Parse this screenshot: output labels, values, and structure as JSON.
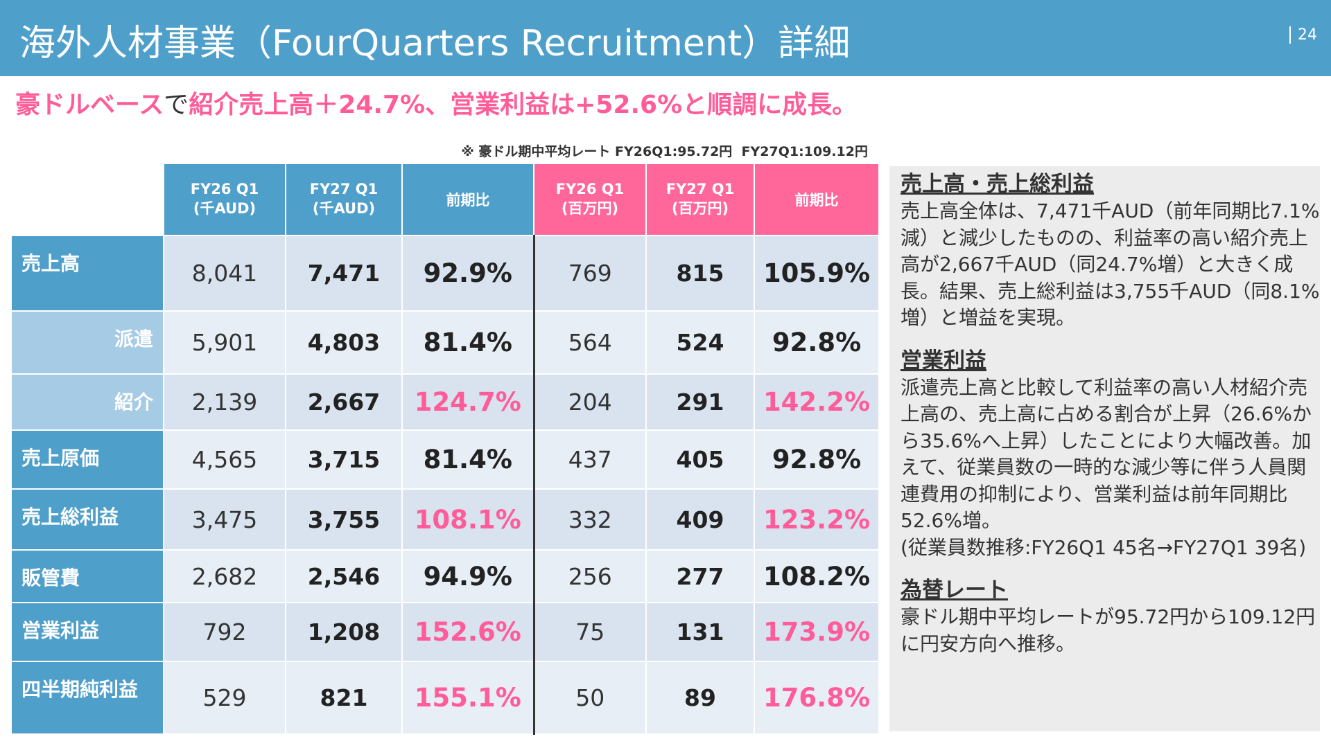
{
  "header": {
    "title": "海外人材事業（FourQuarters Recruitment）詳細",
    "page": "24"
  },
  "subtitle": [
    "豪ドルベース",
    "で",
    "紹介売上高＋24.7%、営業利益は+52.6%と順調に成長。"
  ],
  "note": "※ 豪ドル期中平均レート FY26Q1:95.72円  FY27Q1:109.12円",
  "table": {
    "columns": [
      "FY26 Q1\n(千AUD)",
      "FY27 Q1\n(千AUD)",
      "前期比",
      "FY26 Q1\n(百万円)",
      "FY27 Q1\n(百万円)",
      "前期比"
    ],
    "rows": [
      [
        "売上高",
        "8,041",
        "7,471",
        "92.9%",
        "769",
        "815",
        "105.9%"
      ],
      [
        "派遣",
        "5,901",
        "4,803",
        "81.4%",
        "564",
        "524",
        "92.8%"
      ],
      [
        "紹介",
        "2,139",
        "2,667",
        "124.7%",
        "204",
        "291",
        "142.2%"
      ],
      [
        "売上原価",
        "4,565",
        "3,715",
        "81.4%",
        "437",
        "405",
        "92.8%"
      ],
      [
        "売上総利益",
        "3,475",
        "3,755",
        "108.1%",
        "332",
        "409",
        "123.2%"
      ],
      [
        "販管費",
        "2,682",
        "2,546",
        "94.9%",
        "256",
        "277",
        "108.2%"
      ],
      [
        "営業利益",
        "792",
        "1,208",
        "152.6%",
        "75",
        "131",
        "173.9%"
      ],
      [
        "四半期純利益",
        "529",
        "821",
        "155.1%",
        "50",
        "89",
        "176.8%"
      ]
    ]
  },
  "panel": [
    {
      "heading": "売上高・売上総利益",
      "paragraphs": [
        "売上高全体は、7,471千AUD（前年同期比7.1%減）と減少したものの、利益率の高い紹介売上高が2,667千AUD（同24.7%増）と大きく成長。結果、売上総利益は3,755千AUD（同8.1%増）と増益を実現。"
      ]
    },
    {
      "heading": "営業利益",
      "paragraphs": [
        "派遣売上高と比較して利益率の高い人材紹介売上高の、売上高に占める割合が上昇（26.6%から35.6%へ上昇）したことにより大幅改善。加えて、従業員数の一時的な減少等に伴う人員関連費用の抑制により、営業利益は前年同期比52.6%増。",
        "(従業員数推移:FY26Q1 45名→FY27Q1 39名)"
      ]
    },
    {
      "heading": "為替レート",
      "paragraphs": [
        "豪ドル期中平均レートが95.72円から109.12円に円安方向へ推移。"
      ]
    }
  ]
}
